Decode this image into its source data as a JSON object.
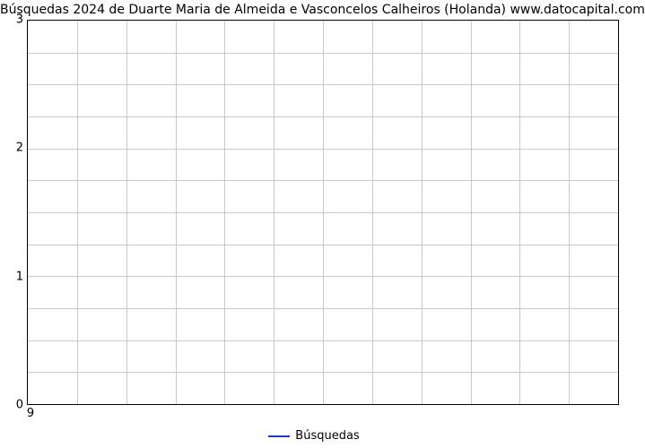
{
  "chart": {
    "type": "line",
    "title": "Búsquedas 2024 de Duarte Maria de Almeida e Vasconcelos Calheiros (Holanda) www.datocapital.com",
    "title_fontsize": 14,
    "title_color": "#000000",
    "background_color": "#ffffff",
    "x": {
      "lim": [
        9,
        9
      ],
      "ticks": [
        9
      ],
      "tick_labels": [
        "9"
      ],
      "tick_fontsize": 13
    },
    "y": {
      "lim": [
        0,
        3
      ],
      "ticks": [
        0,
        1,
        2,
        3
      ],
      "tick_labels": [
        "0",
        "1",
        "2",
        "3"
      ],
      "tick_fontsize": 13
    },
    "grid": {
      "color": "#c9c9c9",
      "h_count": 12,
      "v_count": 12
    },
    "frame_color": "#000000",
    "series": [
      {
        "name": "Búsquedas",
        "color": "#2139cc",
        "line_width": 2,
        "x": [
          9
        ],
        "y": [
          0
        ]
      }
    ],
    "legend": {
      "position": "bottom-center",
      "label": "Búsquedas",
      "swatch_color": "#2139cc",
      "swatch_width": 24,
      "swatch_line_width": 2,
      "fontsize": 13
    }
  }
}
